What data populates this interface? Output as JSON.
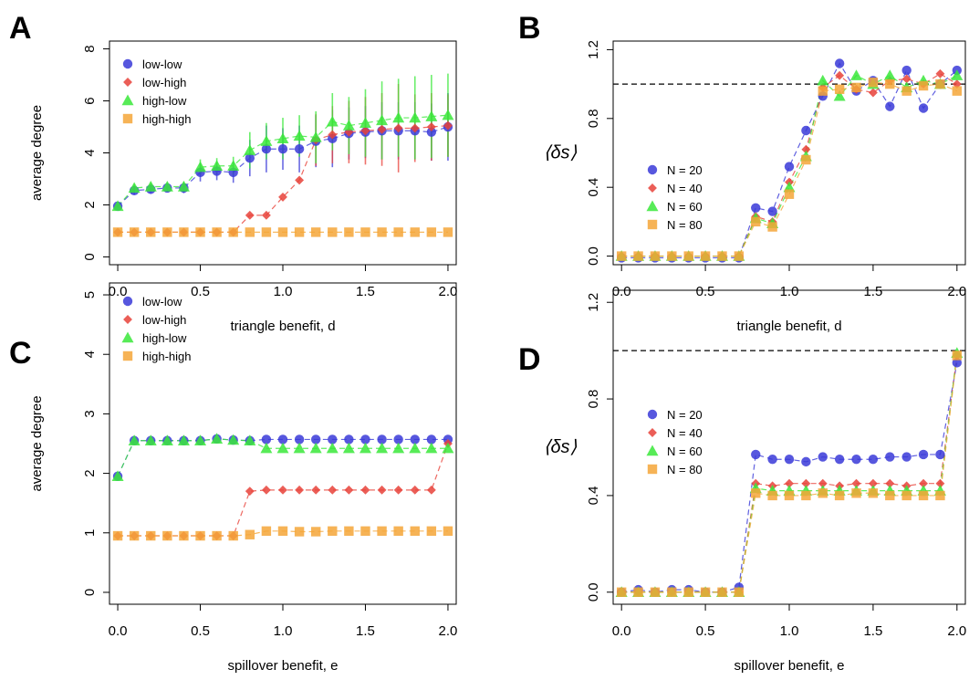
{
  "colors": {
    "low-low": "#3a3ad8",
    "low-high": "#e8423a",
    "high-low": "#3ae83a",
    "high-high": "#f5a638",
    "N = 20": "#3a3ad8",
    "N = 40": "#e8423a",
    "N = 60": "#3ae83a",
    "N = 80": "#f5a638"
  },
  "chart_data": [
    {
      "panel_label": "A",
      "type": "scatter",
      "xlabel": "triangle benefit,  d",
      "ylabel": "average degree",
      "xlim": [
        -0.05,
        2.05
      ],
      "ylim": [
        -0.3,
        8.3
      ],
      "xticks": [
        0.0,
        0.5,
        1.0,
        1.5,
        2.0
      ],
      "xtick_labels": [
        "0.0",
        "0.5",
        "1.0",
        "1.5",
        "2.0"
      ],
      "yticks": [
        0,
        2,
        4,
        6,
        8
      ],
      "ytick_labels": [
        "0",
        "2",
        "4",
        "6",
        "8"
      ],
      "legend_position": "top-left",
      "x": [
        0.0,
        0.1,
        0.2,
        0.3,
        0.4,
        0.5,
        0.6,
        0.7,
        0.8,
        0.9,
        1.0,
        1.1,
        1.2,
        1.3,
        1.4,
        1.5,
        1.6,
        1.7,
        1.8,
        1.9,
        2.0
      ],
      "series": [
        {
          "name": "low-low",
          "marker": "circle",
          "values": [
            1.95,
            2.55,
            2.6,
            2.65,
            2.65,
            3.25,
            3.3,
            3.25,
            3.8,
            4.15,
            4.15,
            4.15,
            4.45,
            4.55,
            4.75,
            4.8,
            4.85,
            4.85,
            4.85,
            4.8,
            5.0
          ],
          "error": [
            0.05,
            0.15,
            0.15,
            0.15,
            0.2,
            0.35,
            0.35,
            0.4,
            0.7,
            0.9,
            0.8,
            0.9,
            1.0,
            1.1,
            1.0,
            1.0,
            1.1,
            1.1,
            1.1,
            1.1,
            1.3
          ]
        },
        {
          "name": "low-high",
          "marker": "diamond",
          "values": [
            0.95,
            0.95,
            0.95,
            0.95,
            0.95,
            0.95,
            0.95,
            0.95,
            1.6,
            1.6,
            2.3,
            2.95,
            4.5,
            4.7,
            4.8,
            4.85,
            4.9,
            4.95,
            4.95,
            5.0,
            5.05
          ],
          "error": [
            0,
            0,
            0,
            0,
            0,
            0,
            0,
            0,
            0,
            0,
            0,
            0,
            1.0,
            1.1,
            1.2,
            1.3,
            1.4,
            1.7,
            1.3,
            1.3,
            1.2
          ]
        },
        {
          "name": "high-low",
          "marker": "triangle",
          "values": [
            1.95,
            2.65,
            2.7,
            2.7,
            2.7,
            3.45,
            3.5,
            3.5,
            4.1,
            4.45,
            4.55,
            4.65,
            4.6,
            5.2,
            5.05,
            5.15,
            5.25,
            5.35,
            5.35,
            5.4,
            5.45
          ],
          "error": [
            0.05,
            0.15,
            0.15,
            0.15,
            0.2,
            0.3,
            0.3,
            0.35,
            0.7,
            0.7,
            0.8,
            0.8,
            1.0,
            1.1,
            1.1,
            1.3,
            1.5,
            1.5,
            1.6,
            1.6,
            1.6
          ]
        },
        {
          "name": "high-high",
          "marker": "square",
          "values": [
            0.95,
            0.95,
            0.95,
            0.95,
            0.95,
            0.95,
            0.95,
            0.95,
            0.95,
            0.95,
            0.95,
            0.95,
            0.95,
            0.95,
            0.95,
            0.95,
            0.95,
            0.95,
            0.95,
            0.95,
            0.95
          ],
          "error": [
            0,
            0,
            0,
            0,
            0,
            0,
            0,
            0,
            0,
            0,
            0,
            0,
            0,
            0,
            0,
            0,
            0,
            0,
            0,
            0,
            0
          ]
        }
      ]
    },
    {
      "panel_label": "B",
      "type": "scatter",
      "xlabel": "triangle benefit,  d",
      "ylabel": "⟨δs⟩",
      "xlim": [
        -0.05,
        2.05
      ],
      "ylim": [
        -0.05,
        1.25
      ],
      "xticks": [
        0.0,
        0.5,
        1.0,
        1.5,
        2.0
      ],
      "xtick_labels": [
        "0.0",
        "0.5",
        "1.0",
        "1.5",
        "2.0"
      ],
      "yticks": [
        0.0,
        0.4,
        0.8,
        1.2
      ],
      "ytick_labels": [
        "0.0",
        "0.4",
        "0.8",
        "1.2"
      ],
      "reference_line": 1.0,
      "legend_position": "middle-left",
      "x": [
        0.0,
        0.1,
        0.2,
        0.3,
        0.4,
        0.5,
        0.6,
        0.7,
        0.8,
        0.9,
        1.0,
        1.1,
        1.2,
        1.3,
        1.4,
        1.5,
        1.6,
        1.7,
        1.8,
        1.9,
        2.0
      ],
      "series": [
        {
          "name": "N = 20",
          "marker": "circle",
          "values": [
            -0.01,
            -0.01,
            -0.01,
            -0.01,
            -0.01,
            -0.01,
            -0.01,
            -0.01,
            0.28,
            0.26,
            0.52,
            0.73,
            0.93,
            1.12,
            0.96,
            1.02,
            0.87,
            1.08,
            0.86,
            1.0,
            1.08
          ]
        },
        {
          "name": "N = 40",
          "marker": "diamond",
          "values": [
            0.0,
            0.0,
            0.0,
            0.0,
            0.0,
            0.0,
            0.0,
            0.0,
            0.23,
            0.2,
            0.43,
            0.62,
            0.98,
            1.05,
            0.97,
            0.95,
            1.02,
            1.03,
            1.0,
            1.06,
            1.0
          ]
        },
        {
          "name": "N = 60",
          "marker": "triangle",
          "values": [
            0.0,
            0.0,
            0.0,
            0.0,
            0.0,
            0.0,
            0.0,
            0.0,
            0.22,
            0.19,
            0.4,
            0.58,
            1.02,
            0.93,
            1.05,
            1.0,
            1.05,
            0.98,
            1.02,
            1.0,
            1.05
          ]
        },
        {
          "name": "N = 80",
          "marker": "square",
          "values": [
            0.0,
            0.0,
            0.0,
            0.0,
            0.0,
            0.0,
            0.0,
            0.0,
            0.2,
            0.17,
            0.36,
            0.56,
            0.96,
            0.97,
            0.98,
            1.01,
            1.0,
            0.96,
            0.99,
            1.0,
            0.96
          ]
        }
      ]
    },
    {
      "panel_label": "C",
      "type": "scatter",
      "xlabel": "spillover benefit,  e",
      "ylabel": "average degree",
      "xlim": [
        -0.05,
        2.05
      ],
      "ylim": [
        -0.2,
        5.2
      ],
      "xticks": [
        0.0,
        0.5,
        1.0,
        1.5,
        2.0
      ],
      "xtick_labels": [
        "0.0",
        "0.5",
        "1.0",
        "1.5",
        "2.0"
      ],
      "yticks": [
        0,
        1,
        2,
        3,
        4,
        5
      ],
      "ytick_labels": [
        "0",
        "1",
        "2",
        "3",
        "4",
        "5"
      ],
      "legend_position": "top-left",
      "x": [
        0.0,
        0.1,
        0.2,
        0.3,
        0.4,
        0.5,
        0.6,
        0.7,
        0.8,
        0.9,
        1.0,
        1.1,
        1.2,
        1.3,
        1.4,
        1.5,
        1.6,
        1.7,
        1.8,
        1.9,
        2.0
      ],
      "series": [
        {
          "name": "low-low",
          "marker": "circle",
          "values": [
            1.95,
            2.55,
            2.55,
            2.55,
            2.55,
            2.55,
            2.58,
            2.56,
            2.55,
            2.57,
            2.57,
            2.57,
            2.57,
            2.57,
            2.57,
            2.57,
            2.57,
            2.57,
            2.57,
            2.57,
            2.57
          ]
        },
        {
          "name": "low-high",
          "marker": "diamond",
          "values": [
            0.95,
            0.95,
            0.95,
            0.95,
            0.95,
            0.95,
            0.95,
            0.95,
            1.7,
            1.72,
            1.72,
            1.72,
            1.72,
            1.72,
            1.72,
            1.72,
            1.72,
            1.72,
            1.72,
            1.72,
            2.5
          ]
        },
        {
          "name": "high-low",
          "marker": "triangle",
          "values": [
            1.95,
            2.55,
            2.55,
            2.55,
            2.55,
            2.55,
            2.58,
            2.56,
            2.55,
            2.42,
            2.42,
            2.42,
            2.42,
            2.42,
            2.42,
            2.42,
            2.42,
            2.42,
            2.42,
            2.42,
            2.42
          ]
        },
        {
          "name": "high-high",
          "marker": "square",
          "values": [
            0.95,
            0.95,
            0.95,
            0.95,
            0.95,
            0.95,
            0.95,
            0.95,
            0.97,
            1.03,
            1.03,
            1.02,
            1.02,
            1.03,
            1.03,
            1.03,
            1.03,
            1.03,
            1.03,
            1.03,
            1.03
          ]
        }
      ]
    },
    {
      "panel_label": "D",
      "type": "scatter",
      "xlabel": "spillover benefit,  e",
      "ylabel": "⟨δs⟩",
      "xlim": [
        -0.05,
        2.05
      ],
      "ylim": [
        -0.05,
        1.25
      ],
      "xticks": [
        0.0,
        0.5,
        1.0,
        1.5,
        2.0
      ],
      "xtick_labels": [
        "0.0",
        "0.5",
        "1.0",
        "1.5",
        "2.0"
      ],
      "yticks": [
        0.0,
        0.4,
        0.8,
        1.2
      ],
      "ytick_labels": [
        "0.0",
        "0.4",
        "0.8",
        "1.2"
      ],
      "reference_line": 1.0,
      "legend_position": "middle-left",
      "x": [
        0.0,
        0.1,
        0.2,
        0.3,
        0.4,
        0.5,
        0.6,
        0.7,
        0.8,
        0.9,
        1.0,
        1.1,
        1.2,
        1.3,
        1.4,
        1.5,
        1.6,
        1.7,
        1.8,
        1.9,
        2.0
      ],
      "series": [
        {
          "name": "N = 20",
          "marker": "circle",
          "values": [
            0.0,
            0.01,
            0.0,
            0.01,
            0.01,
            0.0,
            0.0,
            0.02,
            0.57,
            0.55,
            0.55,
            0.54,
            0.56,
            0.55,
            0.55,
            0.55,
            0.56,
            0.56,
            0.57,
            0.57,
            0.95
          ]
        },
        {
          "name": "N = 40",
          "marker": "diamond",
          "values": [
            0.0,
            0.0,
            0.0,
            0.0,
            0.0,
            0.0,
            0.0,
            0.0,
            0.45,
            0.44,
            0.45,
            0.45,
            0.45,
            0.44,
            0.45,
            0.45,
            0.45,
            0.44,
            0.45,
            0.45,
            0.98
          ]
        },
        {
          "name": "N = 60",
          "marker": "triangle",
          "values": [
            0.0,
            0.0,
            0.0,
            0.0,
            0.0,
            0.0,
            0.0,
            0.0,
            0.43,
            0.42,
            0.42,
            0.42,
            0.42,
            0.42,
            0.42,
            0.42,
            0.42,
            0.42,
            0.42,
            0.42,
            0.99
          ]
        },
        {
          "name": "N = 80",
          "marker": "square",
          "values": [
            0.0,
            0.0,
            0.0,
            0.0,
            0.0,
            0.0,
            0.0,
            0.0,
            0.41,
            0.4,
            0.4,
            0.4,
            0.41,
            0.4,
            0.41,
            0.41,
            0.4,
            0.4,
            0.4,
            0.4,
            0.98
          ]
        }
      ]
    }
  ]
}
